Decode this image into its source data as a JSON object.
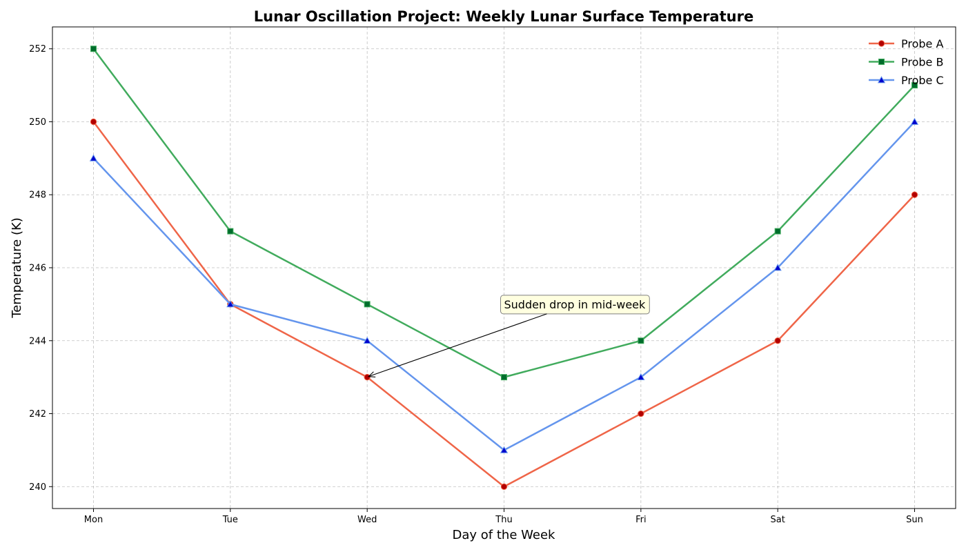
{
  "chart_data": {
    "type": "line",
    "title": "Lunar Oscillation Project: Weekly Lunar Surface Temperature",
    "xlabel": "Day of the Week",
    "ylabel": "Temperature (K)",
    "categories": [
      "Mon",
      "Tue",
      "Wed",
      "Thu",
      "Fri",
      "Sat",
      "Sun"
    ],
    "ylim": [
      239.4,
      252.6
    ],
    "yticks": [
      240,
      242,
      244,
      246,
      248,
      250,
      252
    ],
    "grid": true,
    "legend_position": "top-right",
    "series": [
      {
        "name": "Probe A",
        "values": [
          250,
          245,
          243,
          240,
          242,
          244,
          248
        ],
        "color": "#ef6548",
        "marker": "circle",
        "marker_color": "#b30000"
      },
      {
        "name": "Probe B",
        "values": [
          252,
          247,
          245,
          243,
          244,
          247,
          251
        ],
        "color": "#41ab5d",
        "marker": "square",
        "marker_color": "#006d2c"
      },
      {
        "name": "Probe C",
        "values": [
          249,
          245,
          244,
          241,
          243,
          246,
          250
        ],
        "color": "#6495ed",
        "marker": "triangle",
        "marker_color": "#0000cd"
      }
    ],
    "annotations": [
      {
        "text": "Sudden drop in mid-week",
        "point": {
          "x": "Wed",
          "y": 243
        },
        "text_anchor": {
          "x": "Thu",
          "y": 245
        },
        "box_color": "#ffffe0"
      }
    ]
  }
}
